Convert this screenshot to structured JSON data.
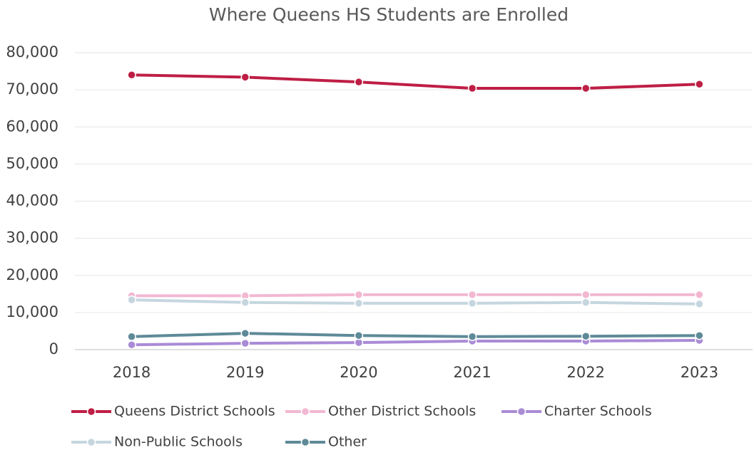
{
  "chart_data": {
    "type": "line",
    "title": "Where Queens HS Students are Enrolled",
    "categories": [
      "2018",
      "2019",
      "2020",
      "2021",
      "2022",
      "2023"
    ],
    "series": [
      {
        "name": "Queens District Schools",
        "color": "#be1e45",
        "values": [
          74000,
          73400,
          72100,
          70400,
          70400,
          71500
        ]
      },
      {
        "name": "Other District Schools",
        "color": "#f2b8d2",
        "values": [
          14500,
          14500,
          14800,
          14800,
          14800,
          14800
        ]
      },
      {
        "name": "Charter Schools",
        "color": "#a98bd6",
        "values": [
          1300,
          1700,
          1900,
          2300,
          2300,
          2500
        ]
      },
      {
        "name": "Non-Public Schools",
        "color": "#c5d6df",
        "values": [
          13400,
          12700,
          12500,
          12500,
          12700,
          12300
        ]
      },
      {
        "name": "Other",
        "color": "#5e8a97",
        "values": [
          3500,
          4400,
          3800,
          3500,
          3600,
          3800
        ]
      }
    ],
    "ylim": [
      0,
      80000
    ],
    "yticks": [
      0,
      {
        "value": 10000,
        "label": "10,000"
      },
      {
        "value": 20000,
        "label": "20,000"
      },
      {
        "value": 30000,
        "label": "30,000"
      },
      {
        "value": 40000,
        "label": "40,000"
      },
      {
        "value": 50000,
        "label": "50,000"
      },
      {
        "value": 60000,
        "label": "60,000"
      },
      {
        "value": 70000,
        "label": "70,000"
      },
      {
        "value": 80000,
        "label": "80,000"
      }
    ],
    "grid": true,
    "legend": "bottom"
  }
}
